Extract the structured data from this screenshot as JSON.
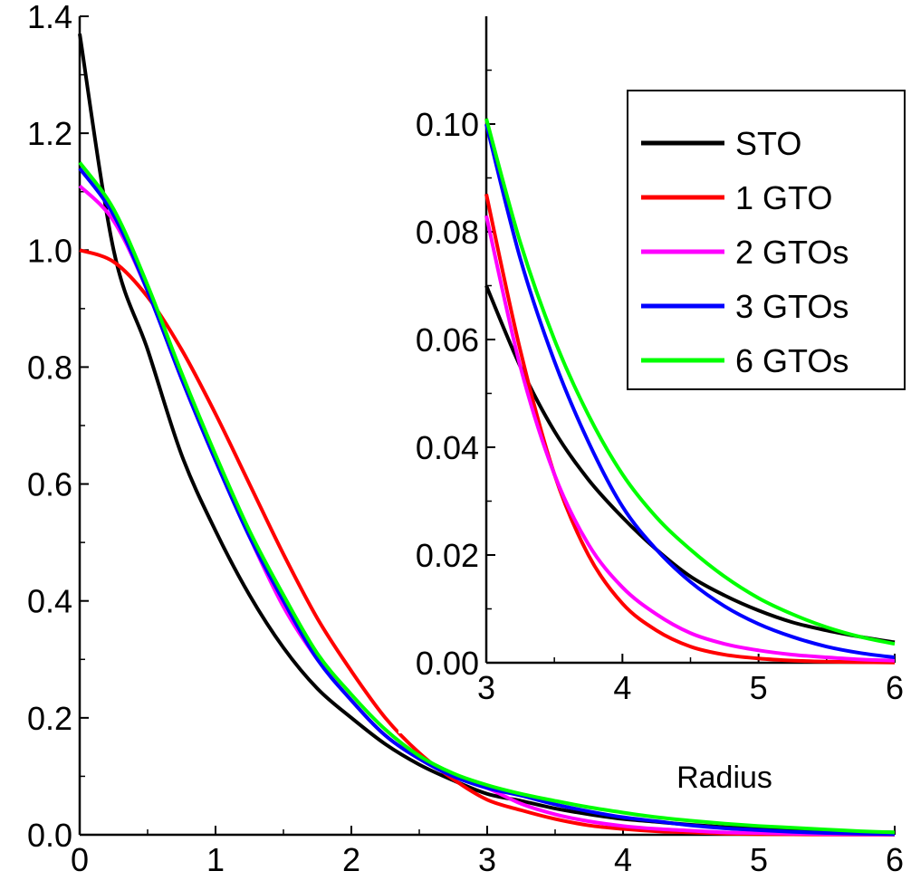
{
  "chart_data": [
    {
      "id": "main",
      "type": "line",
      "title": "",
      "xlabel": "",
      "ylabel": "",
      "xlim": [
        0,
        6
      ],
      "ylim": [
        0,
        1.4
      ],
      "xticks": [
        0,
        1,
        2,
        3,
        4,
        5,
        6
      ],
      "xtick_labels": [
        "0",
        "1",
        "2",
        "3",
        "4",
        "5",
        "6"
      ],
      "yticks": [
        0,
        0.2,
        0.4,
        0.6,
        0.8,
        1.0,
        1.2,
        1.4
      ],
      "ytick_labels": [
        "0.0",
        "0.2",
        "0.4",
        "0.6",
        "0.8",
        "1.0",
        "1.2",
        "1.4"
      ],
      "grid": false,
      "legend": "none",
      "x": [
        0,
        0.25,
        0.5,
        0.75,
        1,
        1.25,
        1.5,
        1.75,
        2,
        2.25,
        2.5,
        2.75,
        3,
        3.25,
        3.5,
        3.75,
        4,
        4.25,
        4.5,
        4.75,
        5,
        5.25,
        5.5,
        5.75,
        6
      ],
      "series": [
        {
          "name": "STO",
          "color": "#000000",
          "values": [
            1.37,
            1.0,
            0.83,
            0.65,
            0.52,
            0.41,
            0.32,
            0.25,
            0.2,
            0.155,
            0.12,
            0.093,
            0.07,
            0.058,
            0.045,
            0.035,
            0.027,
            0.022,
            0.017,
            0.013,
            0.01,
            0.008,
            0.006,
            0.005,
            0.004
          ]
        },
        {
          "name": "1 GTO",
          "color": "#ff0000",
          "values": [
            1.0,
            0.98,
            0.92,
            0.83,
            0.72,
            0.6,
            0.48,
            0.37,
            0.28,
            0.2,
            0.14,
            0.095,
            0.06,
            0.042,
            0.027,
            0.016,
            0.01,
            0.006,
            0.004,
            0.002,
            0.001,
            0.0007,
            0.0004,
            0.0002,
            0.0001
          ]
        },
        {
          "name": "2 GTOs",
          "color": "#ff00ff",
          "values": [
            1.11,
            1.05,
            0.93,
            0.78,
            0.64,
            0.51,
            0.39,
            0.3,
            0.23,
            0.17,
            0.13,
            0.1,
            0.08,
            0.053,
            0.035,
            0.023,
            0.015,
            0.01,
            0.007,
            0.004,
            0.003,
            0.002,
            0.0012,
            0.0007,
            0.0004
          ]
        },
        {
          "name": "3 GTOs",
          "color": "#0000ff",
          "values": [
            1.14,
            1.06,
            0.93,
            0.78,
            0.64,
            0.51,
            0.4,
            0.3,
            0.23,
            0.17,
            0.13,
            0.1,
            0.08,
            0.067,
            0.052,
            0.04,
            0.03,
            0.023,
            0.016,
            0.011,
            0.008,
            0.005,
            0.003,
            0.002,
            0.001
          ]
        },
        {
          "name": "6 GTOs",
          "color": "#00ff00",
          "values": [
            1.15,
            1.07,
            0.94,
            0.79,
            0.65,
            0.52,
            0.41,
            0.31,
            0.24,
            0.18,
            0.135,
            0.105,
            0.085,
            0.07,
            0.058,
            0.047,
            0.038,
            0.03,
            0.024,
            0.019,
            0.015,
            0.012,
            0.009,
            0.006,
            0.004
          ]
        }
      ]
    },
    {
      "id": "inset",
      "type": "line",
      "title": "",
      "xlabel": "Radius",
      "ylabel": "",
      "xlim": [
        3,
        6
      ],
      "ylim": [
        0,
        0.12
      ],
      "xticks": [
        3,
        4,
        5,
        6
      ],
      "xtick_labels": [
        "3",
        "4",
        "5",
        "6"
      ],
      "yticks": [
        0,
        0.02,
        0.04,
        0.06,
        0.08,
        0.1
      ],
      "ytick_labels": [
        "0.00",
        "0.02",
        "0.04",
        "0.06",
        "0.08",
        "0.10"
      ],
      "grid": false,
      "legend": "top-right",
      "x": [
        3,
        3.25,
        3.5,
        3.75,
        4,
        4.25,
        4.5,
        4.75,
        5,
        5.25,
        5.5,
        5.75,
        6
      ],
      "series": [
        {
          "name": "STO",
          "color": "#000000",
          "values": [
            0.07,
            0.055,
            0.043,
            0.034,
            0.027,
            0.021,
            0.016,
            0.0125,
            0.0097,
            0.0075,
            0.006,
            0.0048,
            0.0038
          ]
        },
        {
          "name": "1 GTO",
          "color": "#ff0000",
          "values": [
            0.087,
            0.058,
            0.035,
            0.02,
            0.011,
            0.006,
            0.003,
            0.0015,
            0.0008,
            0.0004,
            0.0002,
            0.0001,
            5e-05
          ]
        },
        {
          "name": "2 GTOs",
          "color": "#ff00ff",
          "values": [
            0.083,
            0.055,
            0.035,
            0.022,
            0.014,
            0.009,
            0.0055,
            0.0035,
            0.0023,
            0.0015,
            0.001,
            0.0006,
            0.0004
          ]
        },
        {
          "name": "3 GTOs",
          "color": "#0000ff",
          "values": [
            0.1,
            0.075,
            0.056,
            0.041,
            0.029,
            0.021,
            0.015,
            0.0105,
            0.0072,
            0.0048,
            0.003,
            0.0018,
            0.001
          ]
        },
        {
          "name": "6 GTOs",
          "color": "#00ff00",
          "values": [
            0.101,
            0.078,
            0.06,
            0.046,
            0.035,
            0.027,
            0.021,
            0.016,
            0.012,
            0.009,
            0.0066,
            0.0048,
            0.0035
          ]
        }
      ]
    }
  ]
}
